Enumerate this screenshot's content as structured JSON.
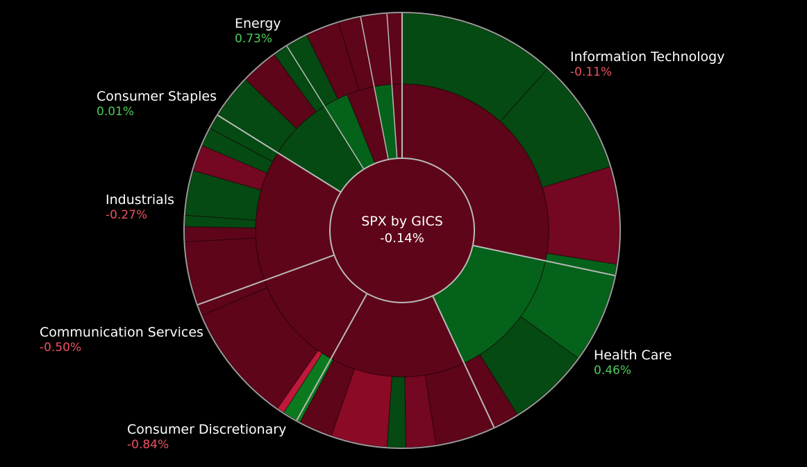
{
  "chart_data": {
    "type": "sunburst",
    "center": {
      "title": "SPX by GICS",
      "change": "-0.14%"
    },
    "colors": {
      "green_dark": "#044a12",
      "green_mid": "#05621a",
      "green_bright": "#0b7a1f",
      "red_dark": "#5e0519",
      "red_mid": "#740722",
      "red_bright": "#8b0a26",
      "red_pink": "#c0193a",
      "separator": "#b9b9b9",
      "positive_text": "#4ecb5a",
      "negative_text": "#ef5060"
    },
    "sectors": [
      {
        "name": "Information Technology",
        "change": "-0.11%",
        "direction": "negative"
      },
      {
        "name": "Health Care",
        "change": "0.46%",
        "direction": "positive"
      },
      {
        "name": "Consumer Discretionary",
        "change": "-0.84%",
        "direction": "negative"
      },
      {
        "name": "Communication Services",
        "change": "-0.50%",
        "direction": "negative"
      },
      {
        "name": "Industrials",
        "change": "-0.27%",
        "direction": "negative"
      },
      {
        "name": "Consumer Staples",
        "change": "0.01%",
        "direction": "positive"
      },
      {
        "name": "Energy",
        "change": "0.73%",
        "direction": "positive"
      }
    ]
  }
}
